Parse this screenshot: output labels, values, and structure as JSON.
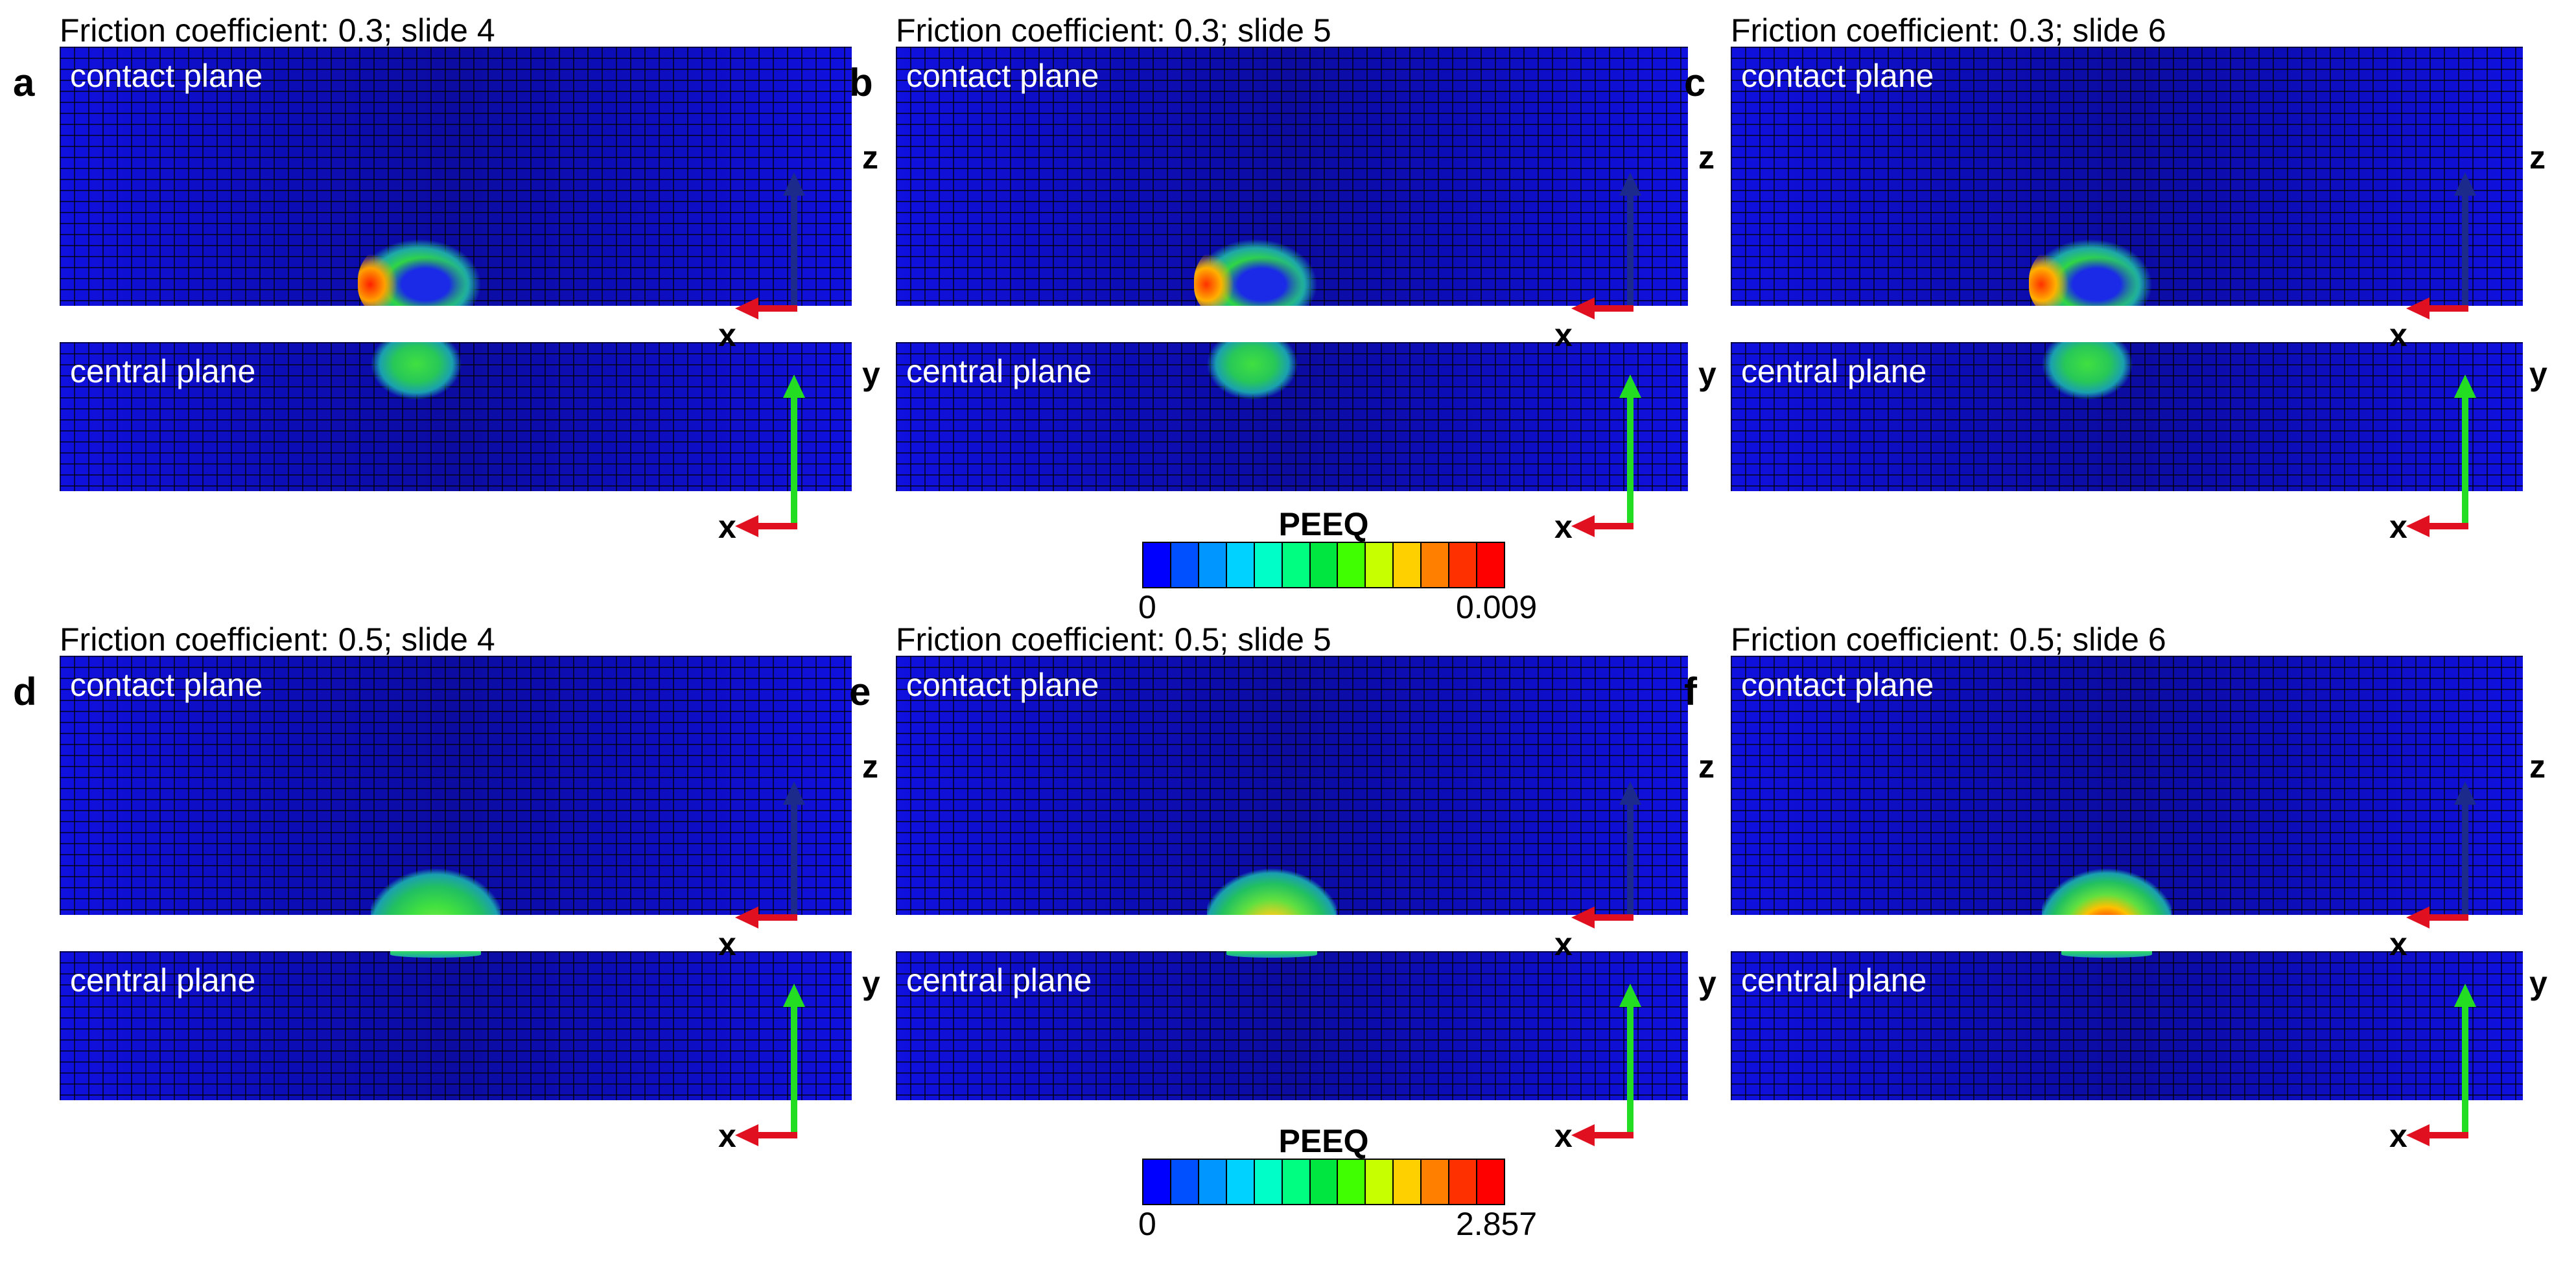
{
  "panels": [
    {
      "letter": "a",
      "title": "Friction coefficient: 0.3; slide 4",
      "contact_label": "contact plane",
      "central_label": "central plane",
      "axes": {
        "contact_horizontal": "x",
        "contact_vertical": "z",
        "central_horizontal": "x",
        "central_vertical": "y"
      }
    },
    {
      "letter": "b",
      "title": "Friction coefficient: 0.3; slide 5",
      "contact_label": "contact plane",
      "central_label": "central plane",
      "axes": {
        "contact_horizontal": "x",
        "contact_vertical": "z",
        "central_horizontal": "x",
        "central_vertical": "y"
      }
    },
    {
      "letter": "c",
      "title": "Friction coefficient: 0.3; slide 6",
      "contact_label": "contact plane",
      "central_label": "central plane",
      "axes": {
        "contact_horizontal": "x",
        "contact_vertical": "z",
        "central_horizontal": "x",
        "central_vertical": "y"
      }
    },
    {
      "letter": "d",
      "title": "Friction coefficient: 0.5; slide 4",
      "contact_label": "contact plane",
      "central_label": "central plane",
      "axes": {
        "contact_horizontal": "x",
        "contact_vertical": "z",
        "central_horizontal": "x",
        "central_vertical": "y"
      }
    },
    {
      "letter": "e",
      "title": "Friction coefficient: 0.5; slide 5",
      "contact_label": "contact plane",
      "central_label": "central plane",
      "axes": {
        "contact_horizontal": "x",
        "contact_vertical": "z",
        "central_horizontal": "x",
        "central_vertical": "y"
      }
    },
    {
      "letter": "f",
      "title": "Friction coefficient: 0.5; slide 6",
      "contact_label": "contact plane",
      "central_label": "central plane",
      "axes": {
        "contact_horizontal": "x",
        "contact_vertical": "z",
        "central_horizontal": "x",
        "central_vertical": "y"
      }
    }
  ],
  "colorbars": [
    {
      "title": "PEEQ",
      "min": "0",
      "max": "0.009"
    },
    {
      "title": "PEEQ",
      "min": "0",
      "max": "2.857"
    }
  ],
  "colorbar_colors": [
    "#0000ff",
    "#0050ff",
    "#0096ff",
    "#00d2ff",
    "#00ffc8",
    "#00ff80",
    "#00e640",
    "#40ff00",
    "#c8ff00",
    "#ffd000",
    "#ff8000",
    "#ff3000",
    "#ff0000"
  ],
  "colors": {
    "mesh_background": "#1010e0",
    "axis_x": "#e01020",
    "axis_z": "#1c2a8c",
    "axis_y": "#22dd22"
  }
}
